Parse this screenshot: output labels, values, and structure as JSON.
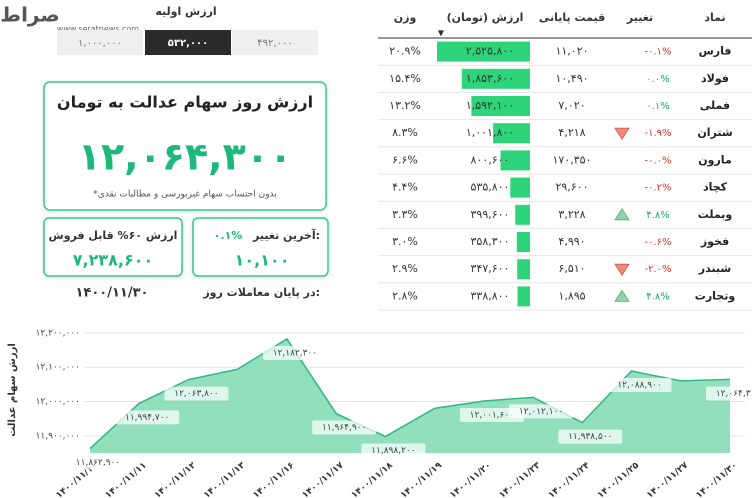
{
  "logo": {
    "name": "صراط",
    "url": "www.seratnews.com"
  },
  "initial_value": {
    "title": "ارزش اولیه",
    "options": [
      "۱,۰۰۰,۰۰۰",
      "۵۳۲,۰۰۰",
      "۴۹۲,۰۰۰"
    ],
    "selected": 1
  },
  "summary": {
    "title": "ارزش روز سهام عدالت به تومان",
    "value": "۱۲,۰۶۴,۳۰۰",
    "note": "*بدون احتساب سهام غیربورسی و مطالبات نقدی"
  },
  "last_change": {
    "label": "آخرین تغییر:",
    "percent": "۰.۱%",
    "value": "۱۰,۱۰۰"
  },
  "sellable": {
    "label": "ارزش ۶۰% قابل فروش",
    "value": "۷,۲۳۸,۶۰۰"
  },
  "date": {
    "label": "در پایان معاملات روز:",
    "value": "۱۴۰۰/۱۱/۳۰"
  },
  "table": {
    "headers": [
      "نماد",
      "تغییر",
      "قیمت پایانی",
      "ارزش (تومان)",
      "وزن"
    ],
    "bar_color": "#2ed47a",
    "rows": [
      {
        "symbol": "فارس",
        "change": "-۰.۱%",
        "price": "۱۱,۰۲۰",
        "value": 2525800,
        "value_label": "۲,۵۲۵,۸۰۰",
        "weight": "۲۰.۹%"
      },
      {
        "symbol": "فولاد",
        "change": "۰.۰%",
        "price": "۱۰,۴۹۰",
        "value": 1853600,
        "value_label": "۱,۸۵۳,۶۰۰",
        "weight": "۱۵.۴%"
      },
      {
        "symbol": "فملی",
        "change": "۰.۱%",
        "price": "۷,۰۲۰",
        "value": 1592100,
        "value_label": "۱,۵۹۲,۱۰۰",
        "weight": "۱۳.۲%"
      },
      {
        "symbol": "شتران",
        "change": "-۱.۹%",
        "price": "۴,۲۱۸",
        "value": 1001800,
        "value_label": "۱,۰۰۱,۸۰۰",
        "weight": "۸.۳%",
        "icon": "down"
      },
      {
        "symbol": "مارون",
        "change": "-۰.۰%",
        "price": "۱۷۰,۳۵۰",
        "value": 800600,
        "value_label": "۸۰۰,۶۰۰",
        "weight": "۶.۶%"
      },
      {
        "symbol": "کچاد",
        "change": "-۰.۲%",
        "price": "۲۹,۶۰۰",
        "value": 535800,
        "value_label": "۵۳۵,۸۰۰",
        "weight": "۴.۴%"
      },
      {
        "symbol": "وبملت",
        "change": "۴.۸%",
        "price": "۳,۲۲۸",
        "value": 399600,
        "value_label": "۳۹۹,۶۰۰",
        "weight": "۳.۳%",
        "icon": "up"
      },
      {
        "symbol": "فخوز",
        "change": "-۰.۶%",
        "price": "۴,۹۹۰",
        "value": 358300,
        "value_label": "۳۵۸,۳۰۰",
        "weight": "۳.۰%"
      },
      {
        "symbol": "شبندر",
        "change": "-۲.۰%",
        "price": "۶,۵۱۰",
        "value": 347600,
        "value_label": "۳۴۷,۶۰۰",
        "weight": "۲.۹%",
        "icon": "down"
      },
      {
        "symbol": "وتجارت",
        "change": "۴.۸%",
        "price": "۱,۸۹۵",
        "value": 338800,
        "value_label": "۳۳۸,۸۰۰",
        "weight": "۲.۸%",
        "icon": "up"
      }
    ]
  },
  "chart_data": {
    "type": "area",
    "y_label": "ارزش سهام عدالت",
    "categories": [
      "۱۴۰۰/۱۱/۱۰",
      "۱۴۰۰/۱۱/۱۱",
      "۱۴۰۰/۱۱/۱۲",
      "۱۴۰۰/۱۱/۱۳",
      "۱۴۰۰/۱۱/۱۶",
      "۱۴۰۰/۱۱/۱۷",
      "۱۴۰۰/۱۱/۱۸",
      "۱۴۰۰/۱۱/۱۹",
      "۱۴۰۰/۱۱/۲۰",
      "۱۴۰۰/۱۱/۲۳",
      "۱۴۰۰/۱۱/۲۴",
      "۱۴۰۰/۱۱/۲۵",
      "۱۴۰۰/۱۱/۲۷",
      "۱۴۰۰/۱۱/۳۰"
    ],
    "values": [
      11862900,
      11994700,
      12063800,
      12094000,
      12182300,
      11964900,
      11898200,
      11980000,
      12001600,
      12012100,
      11938500,
      12088900,
      12060000,
      12064300
    ],
    "value_labels": [
      "۱۱,۸۶۲,۹۰۰",
      "۱۱,۹۹۴,۷۰۰",
      "۱۲,۰۶۳,۸۰۰",
      null,
      "۱۲,۱۸۲,۳۰۰",
      "۱۱,۹۶۴,۹۰۰",
      "۱۱,۸۹۸,۲۰۰",
      null,
      "۱۲,۰۰۱,۶۰۰",
      "۱۲,۰۱۲,۱۰۰",
      "۱۱,۹۳۸,۵۰۰",
      "۱۲,۰۸۸,۹۰۰",
      null,
      "۱۲,۰۶۴,۳۰۰"
    ],
    "color": "#7fd9b2",
    "line_color": "#2eb883",
    "ylim": [
      11850000,
      12220000
    ],
    "yticks": [
      {
        "value": 11900000,
        "label": "۱۱,۹۰۰,۰۰۰"
      },
      {
        "value": 12000000,
        "label": "۱۲,۰۰۰,۰۰۰"
      },
      {
        "value": 12100000,
        "label": "۱۲,۱۰۰,۰۰۰"
      },
      {
        "value": 12200000,
        "label": "۱۲,۲۰۰,۰۰۰"
      }
    ],
    "grid": true
  }
}
